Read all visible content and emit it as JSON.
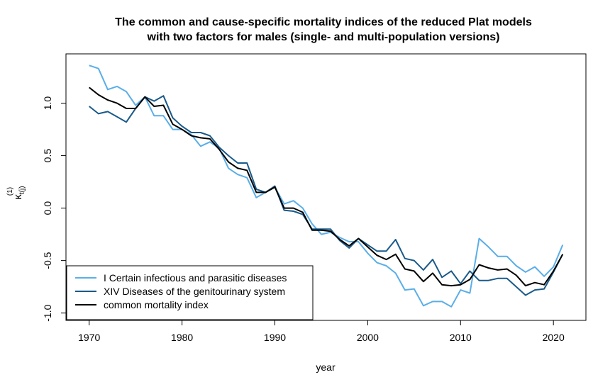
{
  "chart_data": {
    "type": "line",
    "title_lines": [
      "The common and cause-specific mortality indices of the reduced Plat models",
      "with two factors for males (single- and multi-population versions)"
    ],
    "xlabel": "year",
    "ylabel_symbol": "κ",
    "ylabel_superscript": "(1)",
    "ylabel_subscript": "t(j)",
    "xlim": [
      1967.5,
      2023.5
    ],
    "ylim": [
      -1.07,
      1.47
    ],
    "x_ticks": [
      1970,
      1980,
      1990,
      2000,
      2010,
      2020
    ],
    "y_ticks": [
      -1.0,
      -0.5,
      0.0,
      0.5,
      1.0
    ],
    "y_tick_labels": [
      "-1.0",
      "-0.5",
      "0.0",
      "0.5",
      "1.0"
    ],
    "grid": false,
    "legend_position": "bottom-left",
    "x": [
      1970,
      1971,
      1972,
      1973,
      1974,
      1975,
      1976,
      1977,
      1978,
      1979,
      1980,
      1981,
      1982,
      1983,
      1984,
      1985,
      1986,
      1987,
      1988,
      1989,
      1990,
      1991,
      1992,
      1993,
      1994,
      1995,
      1996,
      1997,
      1998,
      1999,
      2000,
      2001,
      2002,
      2003,
      2004,
      2005,
      2006,
      2007,
      2008,
      2009,
      2010,
      2011,
      2012,
      2013,
      2014,
      2015,
      2016,
      2017,
      2018,
      2019,
      2020,
      2021
    ],
    "series": [
      {
        "name": "I Certain infectious and parasitic diseases",
        "color": "#5aaee8",
        "values": [
          1.36,
          1.33,
          1.13,
          1.16,
          1.11,
          0.98,
          1.06,
          0.88,
          0.88,
          0.75,
          0.75,
          0.7,
          0.59,
          0.63,
          0.57,
          0.38,
          0.32,
          0.29,
          0.1,
          0.15,
          0.2,
          0.04,
          0.07,
          0.0,
          -0.15,
          -0.25,
          -0.23,
          -0.28,
          -0.32,
          -0.32,
          -0.43,
          -0.52,
          -0.55,
          -0.62,
          -0.78,
          -0.77,
          -0.93,
          -0.89,
          -0.89,
          -0.94,
          -0.78,
          -0.81,
          -0.29,
          -0.37,
          -0.46,
          -0.46,
          -0.55,
          -0.61,
          -0.56,
          -0.65,
          -0.56,
          -0.35
        ]
      },
      {
        "name": "XIV Diseases of the genitourinary system",
        "color": "#1a5a8a",
        "values": [
          0.97,
          0.9,
          0.92,
          0.87,
          0.82,
          0.95,
          1.06,
          1.02,
          1.07,
          0.86,
          0.78,
          0.72,
          0.72,
          0.69,
          0.58,
          0.5,
          0.43,
          0.43,
          0.18,
          0.15,
          0.21,
          -0.02,
          -0.03,
          -0.06,
          -0.2,
          -0.2,
          -0.2,
          -0.31,
          -0.38,
          -0.29,
          -0.35,
          -0.41,
          -0.41,
          -0.3,
          -0.48,
          -0.5,
          -0.59,
          -0.49,
          -0.66,
          -0.6,
          -0.72,
          -0.6,
          -0.69,
          -0.69,
          -0.67,
          -0.67,
          -0.75,
          -0.83,
          -0.78,
          -0.77,
          -0.61,
          -0.44
        ]
      },
      {
        "name": "common mortality index",
        "color": "#000000",
        "values": [
          1.15,
          1.08,
          1.03,
          1.0,
          0.95,
          0.95,
          1.06,
          0.97,
          0.98,
          0.8,
          0.75,
          0.69,
          0.67,
          0.66,
          0.56,
          0.44,
          0.38,
          0.36,
          0.15,
          0.15,
          0.2,
          0.0,
          0.0,
          -0.04,
          -0.21,
          -0.21,
          -0.22,
          -0.3,
          -0.36,
          -0.29,
          -0.37,
          -0.45,
          -0.49,
          -0.44,
          -0.58,
          -0.6,
          -0.7,
          -0.62,
          -0.73,
          -0.74,
          -0.73,
          -0.68,
          -0.54,
          -0.57,
          -0.59,
          -0.58,
          -0.64,
          -0.74,
          -0.71,
          -0.73,
          -0.6,
          -0.44
        ]
      }
    ]
  }
}
